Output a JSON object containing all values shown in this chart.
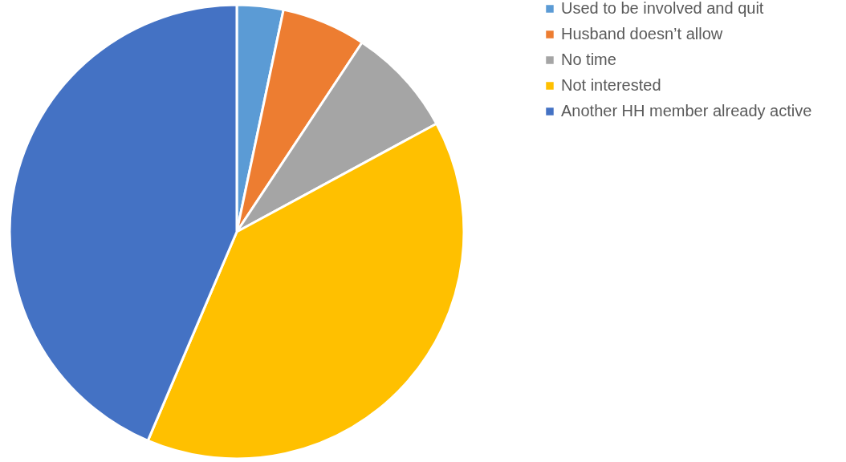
{
  "chart_data": {
    "type": "pie",
    "categories": [
      "Used to be involved and quit",
      "Husband doesn’t allow",
      "No time",
      "Not interested",
      "Another HH member already active"
    ],
    "values": [
      3.3,
      6.0,
      7.8,
      39.3,
      43.6
    ],
    "colors": [
      "#5b9bd5",
      "#ed7d31",
      "#a5a5a5",
      "#ffc000",
      "#4472c4"
    ],
    "legend": "right"
  }
}
